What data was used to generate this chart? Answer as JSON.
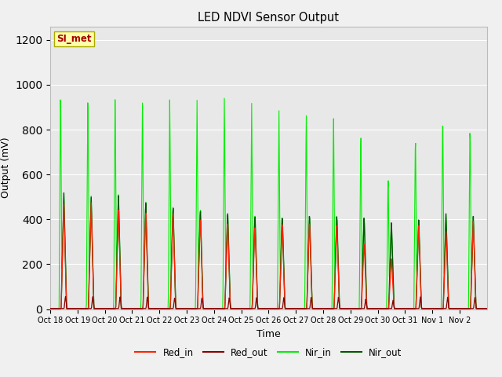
{
  "title": "LED NDVI Sensor Output",
  "xlabel": "Time",
  "ylabel": "Output (mV)",
  "ylim": [
    0,
    1260
  ],
  "yticks": [
    0,
    200,
    400,
    600,
    800,
    1000,
    1200
  ],
  "fig_facecolor": "#f0f0f0",
  "ax_facecolor": "#e8e8e8",
  "annotation_text": "SI_met",
  "annotation_bg": "#ffffaa",
  "annotation_border": "#aaaa00",
  "xtick_labels": [
    "Oct 18",
    "Oct 19",
    "Oct 20",
    "Oct 21",
    "Oct 22",
    "Oct 23",
    "Oct 24",
    "Oct 25",
    "Oct 26",
    "Oct 27",
    "Oct 28",
    "Oct 29",
    "Oct 30",
    "Oct 31",
    "Nov 1",
    "Nov 2"
  ],
  "nir_in_tall": [
    1020,
    990,
    990,
    960,
    960,
    945,
    940,
    930,
    910,
    900,
    900,
    820,
    625,
    820,
    920,
    870
  ],
  "red_in_peak": [
    470,
    480,
    450,
    440,
    440,
    415,
    400,
    385,
    400,
    400,
    390,
    300,
    230,
    380,
    350,
    395
  ],
  "red_out_peak": [
    60,
    60,
    60,
    60,
    55,
    55,
    55,
    55,
    55,
    55,
    55,
    45,
    40,
    55,
    55,
    55
  ],
  "nir_out_peak": [
    520,
    505,
    515,
    485,
    465,
    455,
    445,
    435,
    430,
    435,
    430,
    420,
    395,
    405,
    430,
    415
  ],
  "nir_in_low": [
    520,
    510,
    520,
    490,
    470,
    460,
    450,
    440,
    430,
    435,
    430,
    420,
    395,
    405,
    430,
    415
  ]
}
